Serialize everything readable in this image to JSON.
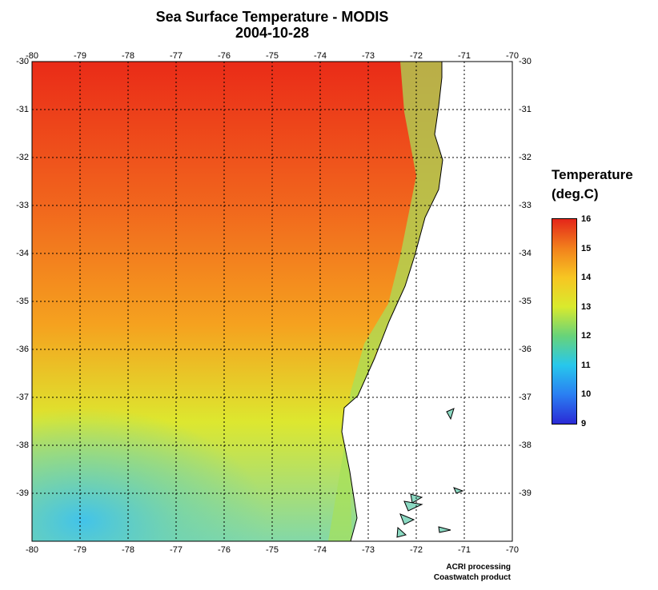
{
  "title": "Sea Surface Temperature - MODIS",
  "subtitle": "2004-10-28",
  "map": {
    "lon_min": -80,
    "lon_max": -70,
    "lat_min": -40,
    "lat_max": -30,
    "lon_ticks": [
      "-80",
      "-79",
      "-78",
      "-77",
      "-76",
      "-75",
      "-74",
      "-73",
      "-72",
      "-71",
      "-70"
    ],
    "lat_ticks": [
      "-30",
      "-31",
      "-32",
      "-33",
      "-34",
      "-35",
      "-36",
      "-37",
      "-38",
      "-39"
    ],
    "gridlines": true,
    "land_color": "#ffffff",
    "coastline_color": "#000000"
  },
  "legend": {
    "title_line1": "Temperature",
    "title_line2": "(deg.C)",
    "values": [
      "16",
      "15",
      "14",
      "13",
      "12",
      "11",
      "10",
      "9"
    ],
    "min": 9,
    "max": 16,
    "colors": [
      "#2a2ad6",
      "#2a7ff2",
      "#27c7ec",
      "#67d37a",
      "#d9ea2d",
      "#f7c622",
      "#f2811c",
      "#e4261a"
    ]
  },
  "credits": {
    "line1": "ACRI processing",
    "line2": "Coastwatch product"
  }
}
